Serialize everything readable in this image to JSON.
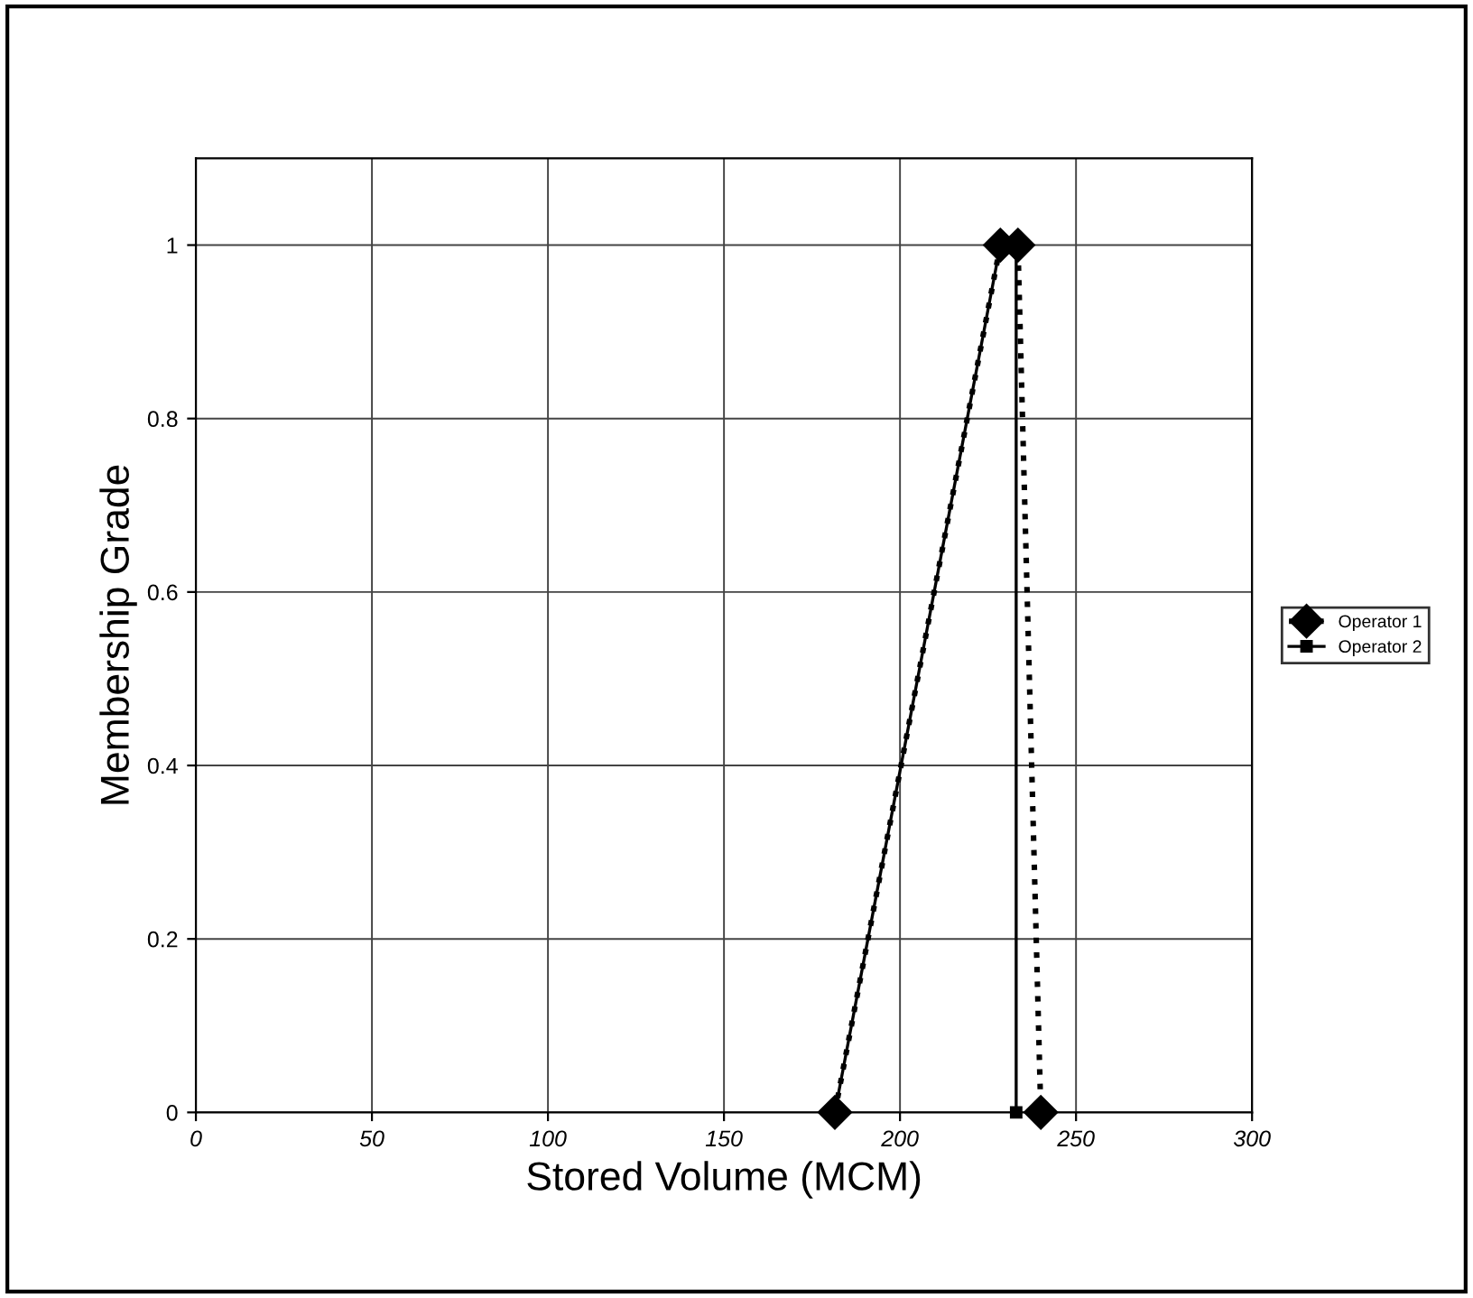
{
  "chart_data": {
    "type": "line",
    "xlabel": "Stored Volume (MCM)",
    "ylabel": "Membership Grade",
    "series": [
      {
        "name": "Operator 1",
        "color": "#000000",
        "x": [
          181.5,
          228.5,
          233.5,
          240
        ],
        "values": [
          0,
          1,
          1,
          0
        ],
        "line_style": "dotted",
        "marker": "diamond"
      },
      {
        "name": "Operator 2",
        "color": "#000000",
        "x": [
          181.5,
          228.5,
          233,
          233
        ],
        "values": [
          0,
          1,
          1,
          0
        ],
        "line_style": "solid",
        "marker": "square"
      }
    ],
    "xlim": [
      0,
      300
    ],
    "xticks": [
      0,
      50,
      100,
      150,
      200,
      250,
      300
    ],
    "ylim": [
      0,
      1.1
    ],
    "yticks": [
      0,
      0.2,
      0.4,
      0.6,
      0.8,
      1
    ],
    "grid": true,
    "legend": "right"
  }
}
